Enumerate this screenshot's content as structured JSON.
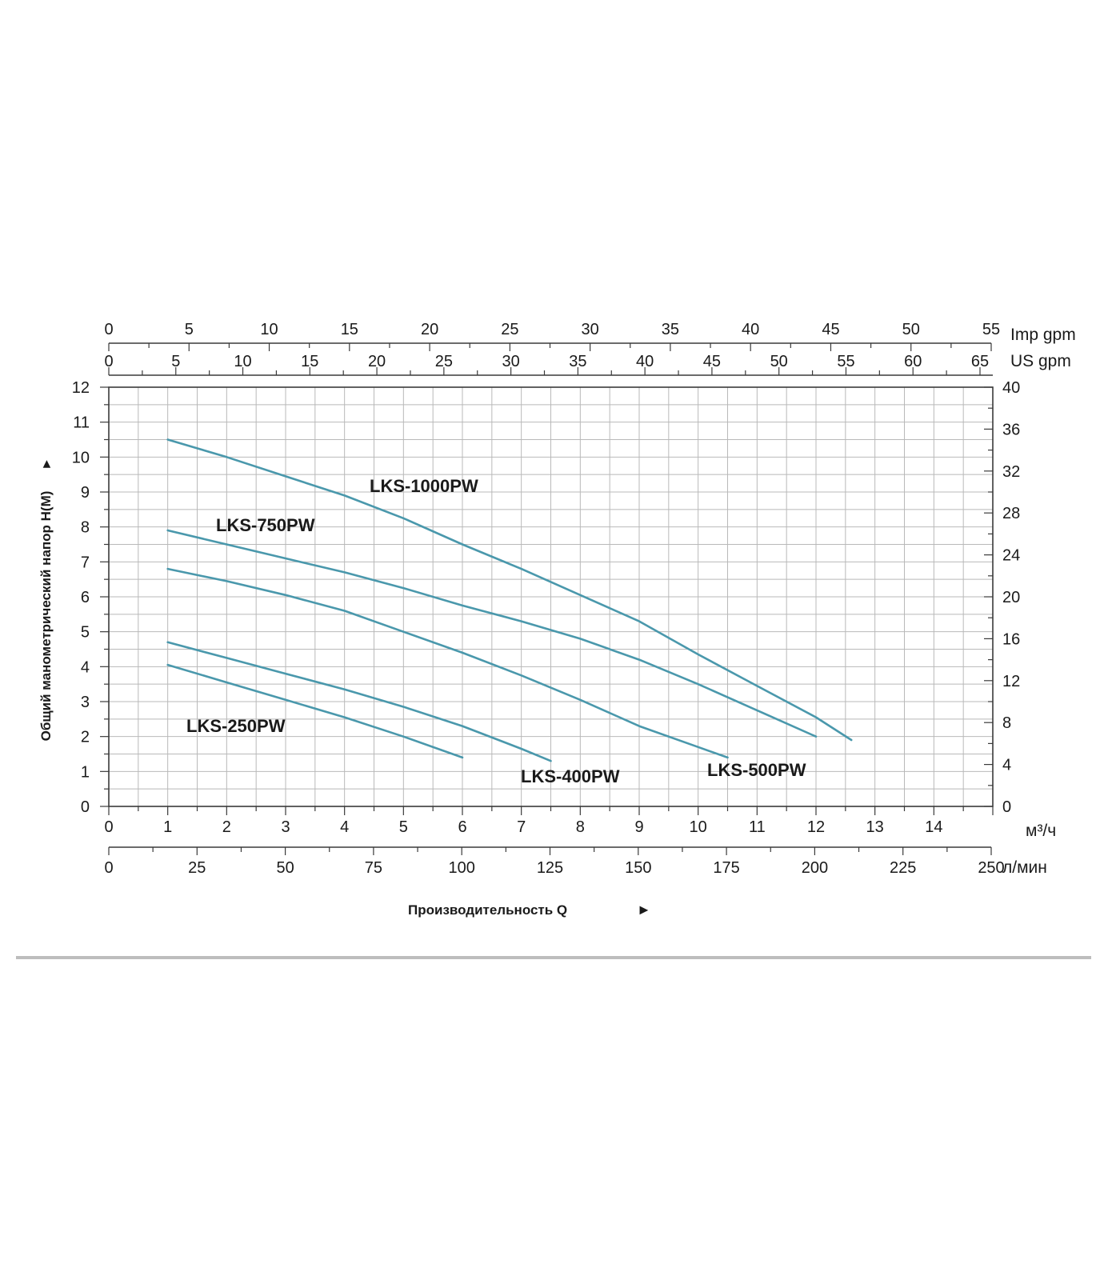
{
  "colors": {
    "curve": "#4a98ac",
    "grid": "#b9b9b9",
    "axis": "#3a3a3a",
    "divider": "#bdbdbd"
  },
  "chart_data": {
    "type": "line",
    "xlabel": "Производительность Q",
    "xlabel_arrow": "►",
    "ylabel": "Общий манометрический напор H(М)",
    "ylabel_arrow": "►",
    "xlim": [
      0,
      15
    ],
    "ylim": [
      0,
      12
    ],
    "grid": true,
    "x_ticks": [
      0,
      1,
      2,
      3,
      4,
      5,
      6,
      7,
      8,
      9,
      10,
      11,
      12,
      13,
      14
    ],
    "x_unit": "м³/ч",
    "y_ticks": [
      0,
      1,
      2,
      3,
      4,
      5,
      6,
      7,
      8,
      9,
      10,
      11,
      12
    ],
    "right_axis": {
      "ticks": [
        "0",
        "4",
        "8",
        "12",
        "16",
        "20",
        "24",
        "28",
        "32",
        "36",
        "40"
      ]
    },
    "secondary_axes": {
      "imp_gpm": {
        "unit": "Imp gpm",
        "ticks": [
          "0",
          "5",
          "10",
          "15",
          "20",
          "25",
          "30",
          "35",
          "40",
          "45",
          "50",
          "55"
        ]
      },
      "us_gpm": {
        "unit": "US gpm",
        "ticks": [
          "0",
          "5",
          "10",
          "15",
          "20",
          "25",
          "30",
          "35",
          "40",
          "45",
          "50",
          "55",
          "60",
          "65"
        ]
      },
      "l_min": {
        "unit": "л/мин",
        "ticks": [
          "0",
          "25",
          "50",
          "75",
          "100",
          "125",
          "150",
          "175",
          "200",
          "225",
          "250"
        ]
      }
    },
    "series": [
      {
        "name": "LKS-1000PW",
        "x": [
          1,
          2,
          3,
          4,
          5,
          6,
          7,
          8,
          9,
          10,
          11,
          12,
          12.6
        ],
        "y": [
          10.5,
          10.0,
          9.45,
          8.9,
          8.25,
          7.5,
          6.8,
          6.05,
          5.3,
          4.35,
          3.45,
          2.55,
          1.9
        ]
      },
      {
        "name": "LKS-750PW",
        "x": [
          1,
          2,
          3,
          4,
          5,
          6,
          7,
          8,
          9,
          10,
          11,
          12
        ],
        "y": [
          7.9,
          7.5,
          7.1,
          6.7,
          6.25,
          5.75,
          5.3,
          4.8,
          4.2,
          3.5,
          2.75,
          2.0
        ]
      },
      {
        "name": "LKS-500PW",
        "x": [
          1,
          2,
          3,
          4,
          5,
          6,
          7,
          8,
          9,
          10,
          10.5
        ],
        "y": [
          6.8,
          6.45,
          6.05,
          5.6,
          5.0,
          4.4,
          3.75,
          3.05,
          2.3,
          1.7,
          1.4
        ]
      },
      {
        "name": "LKS-400PW",
        "x": [
          1,
          2,
          3,
          4,
          5,
          6,
          7,
          7.5
        ],
        "y": [
          4.7,
          4.25,
          3.8,
          3.35,
          2.85,
          2.3,
          1.65,
          1.3
        ]
      },
      {
        "name": "LKS-250PW",
        "x": [
          1,
          2,
          3,
          4,
          5,
          6
        ],
        "y": [
          4.05,
          3.55,
          3.05,
          2.55,
          2.0,
          1.4
        ]
      }
    ]
  }
}
